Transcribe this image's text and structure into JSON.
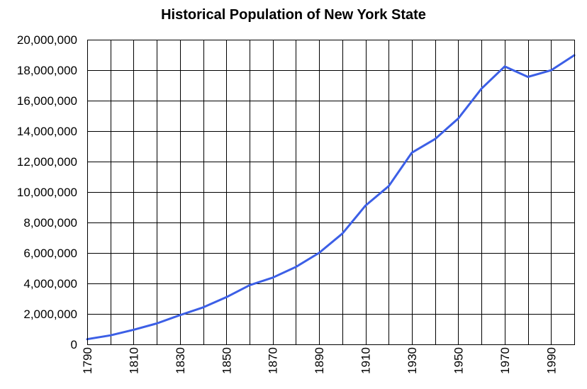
{
  "chart_data": {
    "type": "line",
    "title": "Historical Population of New York State",
    "xlabel": "",
    "ylabel": "",
    "x": [
      1790,
      1800,
      1810,
      1820,
      1830,
      1840,
      1850,
      1860,
      1870,
      1880,
      1890,
      1900,
      1910,
      1920,
      1930,
      1940,
      1950,
      1960,
      1970,
      1980,
      1990,
      2000
    ],
    "series": [
      {
        "color": "#3c5fe6",
        "values": [
          340120,
          589051,
          959049,
          1372812,
          1918608,
          2428921,
          3097394,
          3880735,
          4382759,
          5082871,
          6003174,
          7268894,
          9113614,
          10385227,
          12588066,
          13479142,
          14830192,
          16782304,
          18241266,
          17558072,
          17990455,
          18976457
        ]
      }
    ],
    "xlim": [
      1790,
      2000
    ],
    "ylim": [
      0,
      20000000
    ],
    "y_ticks": [
      "0",
      "2,000,000",
      "4,000,000",
      "6,000,000",
      "8,000,000",
      "10,000,000",
      "12,000,000",
      "14,000,000",
      "16,000,000",
      "18,000,000",
      "20,000,000"
    ],
    "x_tick_labels": [
      "1790",
      "1810",
      "1830",
      "1850",
      "1870",
      "1890",
      "1910",
      "1930",
      "1950",
      "1970",
      "1990"
    ],
    "grid": true,
    "legend": "none"
  }
}
